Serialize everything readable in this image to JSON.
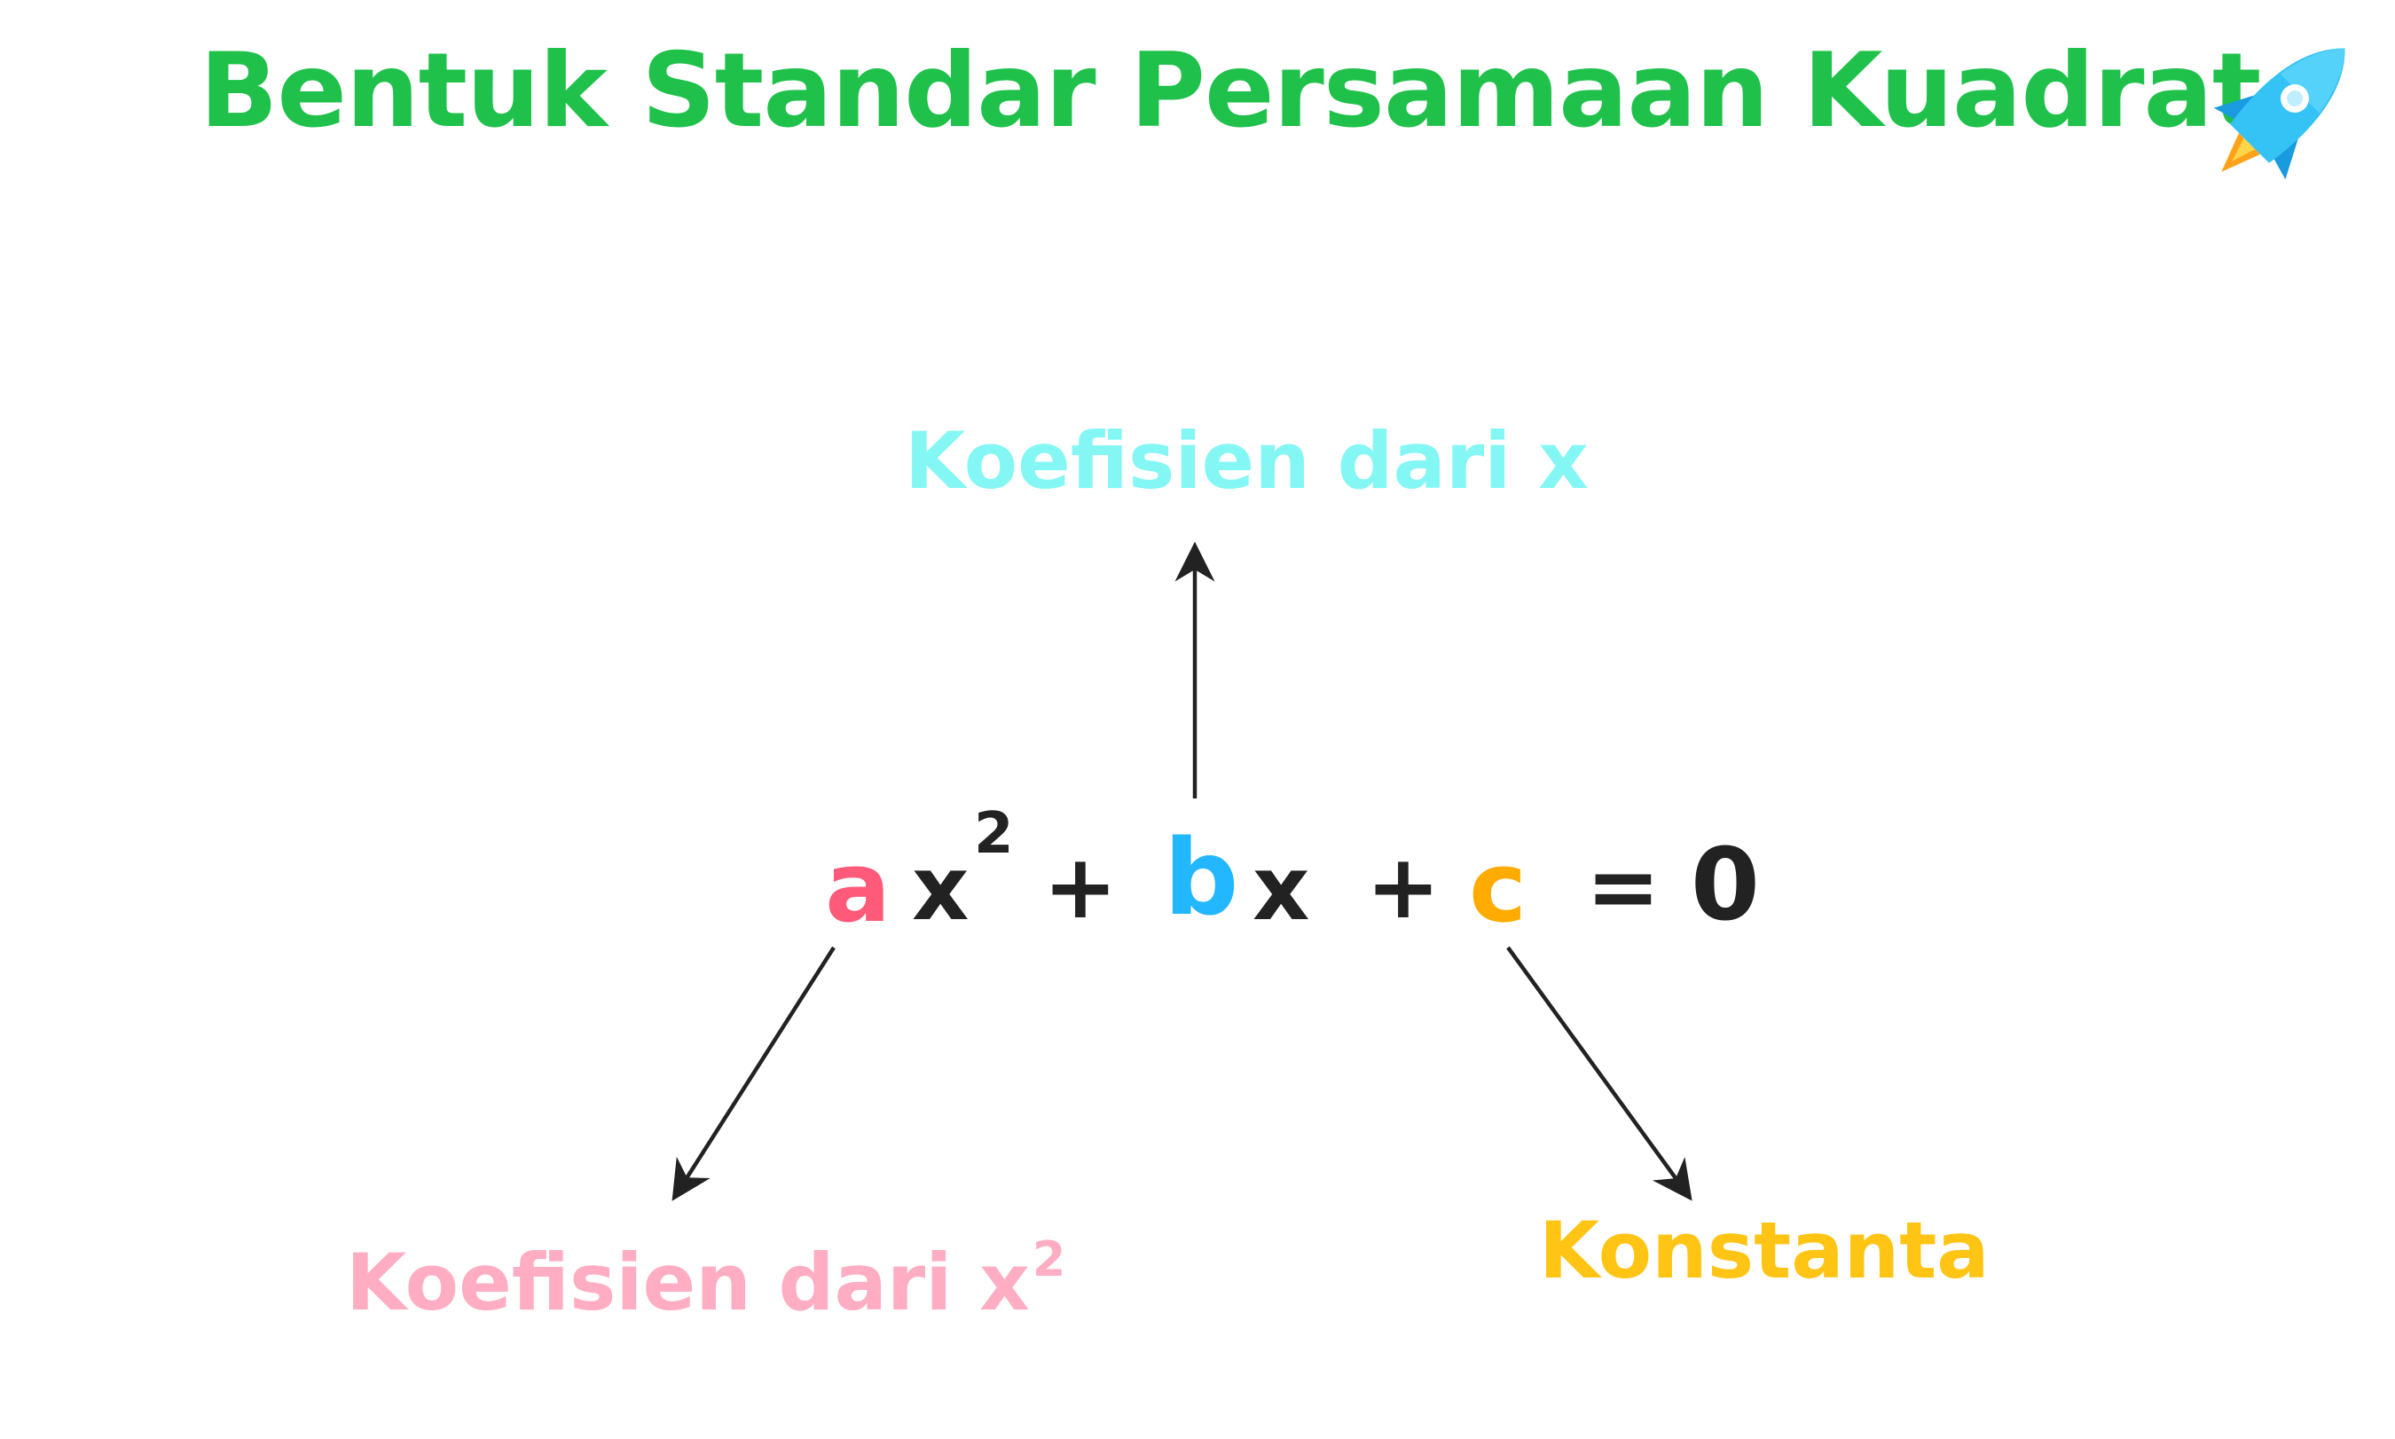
{
  "title": "Bentuk Standar Persamaan Kuadrat",
  "equation": {
    "a": "a",
    "x1": "x",
    "exp": "2",
    "plus1": "+",
    "b": "b",
    "x2": "x",
    "plus2": "+",
    "c": "c",
    "equals": "=",
    "zero": "0"
  },
  "labels": {
    "b_label": "Koefisien dari x",
    "a_label": "Koefisien dari x",
    "a_label_exp": "2",
    "c_label": "Konstanta"
  },
  "colors": {
    "title": "#1fc14b",
    "a": "#ff5a79",
    "b": "#23b7ff",
    "c": "#ffab00",
    "label_a": "#ffadc3",
    "label_b": "#84f7f5",
    "label_c": "#ffc414",
    "symbols": "#222222"
  },
  "icon": "rocket-icon"
}
